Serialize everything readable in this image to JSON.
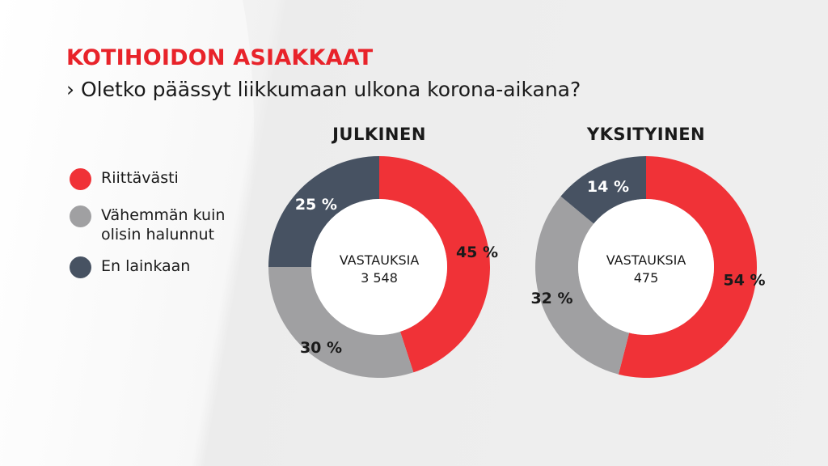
{
  "title": "KOTIHOIDON ASIAKKAAT",
  "subtitle": "› Oletko päässyt liikkumaan ulkona korona-aikana?",
  "legend": [
    {
      "label": "Riittävästi",
      "color": "#f03237"
    },
    {
      "label": "Vähemmän kuin olisin halunnut",
      "color": "#a0a0a2"
    },
    {
      "label": "En lainkaan",
      "color": "#475262"
    }
  ],
  "chart_data": [
    {
      "type": "pie",
      "title": "JULKINEN",
      "center_label": "VASTAUKSIA",
      "center_value": "3 548",
      "categories": [
        "Riittävästi",
        "Vähemmän kuin olisin halunnut",
        "En lainkaan"
      ],
      "values": [
        45,
        30,
        25
      ],
      "labels": [
        "45 %",
        "30 %",
        "25 %"
      ],
      "colors": [
        "#f03237",
        "#a0a0a2",
        "#475262"
      ]
    },
    {
      "type": "pie",
      "title": "YKSITYINEN",
      "center_label": "VASTAUKSIA",
      "center_value": "475",
      "categories": [
        "Riittävästi",
        "Vähemmän kuin olisin halunnut",
        "En lainkaan"
      ],
      "values": [
        54,
        32,
        14
      ],
      "labels": [
        "54 %",
        "32 %",
        "14 %"
      ],
      "colors": [
        "#f03237",
        "#a0a0a2",
        "#475262"
      ]
    }
  ]
}
